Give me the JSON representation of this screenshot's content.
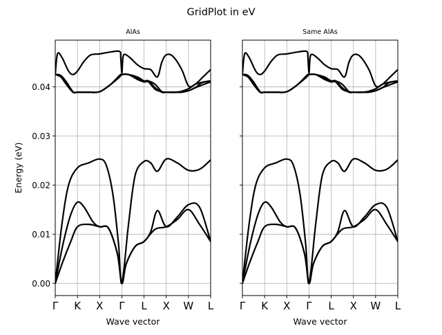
{
  "figure": {
    "suptitle": "GridPlot in eV"
  },
  "chart_data": [
    {
      "type": "line",
      "title": "AlAs",
      "xlabel": "Wave vector",
      "ylabel": "Energy (eV)",
      "ylim": [
        -0.0025,
        0.0495
      ],
      "yticks": [
        0.0,
        0.01,
        0.02,
        0.03,
        0.04
      ],
      "ytick_labels": [
        "0.00",
        "0.01",
        "0.02",
        "0.03",
        "0.04"
      ],
      "kpoints": [
        "Γ",
        "K",
        "X",
        "Γ",
        "L",
        "X",
        "W",
        "L"
      ],
      "kpoint_positions": [
        0,
        1,
        2,
        3,
        4,
        5,
        6,
        7
      ],
      "grid": true,
      "color": "#000000",
      "series": [
        {
          "x": [
            0,
            0.35,
            0.7,
            1,
            1.5,
            2,
            2.4,
            2.8,
            3,
            3.2,
            3.6,
            4,
            4.5,
            5,
            5.5,
            6,
            6.5,
            7
          ],
          "values": [
            0.0,
            0.0045,
            0.0085,
            0.0115,
            0.012,
            0.0115,
            0.0112,
            0.006,
            0.0,
            0.004,
            0.0075,
            0.0085,
            0.011,
            0.0115,
            0.013,
            0.015,
            0.012,
            0.0085
          ]
        },
        {
          "x": [
            0,
            0.35,
            0.7,
            1,
            1.3,
            1.7,
            2,
            2.4,
            2.8,
            3,
            3.2,
            3.6,
            4,
            4.3,
            4.6,
            5,
            5.5,
            6,
            6.5,
            7
          ],
          "values": [
            0.0,
            0.008,
            0.014,
            0.0165,
            0.0155,
            0.0125,
            0.0115,
            0.0112,
            0.006,
            0.0,
            0.004,
            0.0075,
            0.0085,
            0.0105,
            0.0148,
            0.0115,
            0.0135,
            0.016,
            0.0155,
            0.0085
          ]
        },
        {
          "x": [
            0,
            0.3,
            0.6,
            1,
            1.5,
            2,
            2.3,
            2.6,
            2.85,
            3,
            3.3,
            3.6,
            4,
            4.3,
            4.6,
            5,
            5.5,
            6,
            6.5,
            7
          ],
          "values": [
            0.0,
            0.012,
            0.02,
            0.0235,
            0.0245,
            0.0253,
            0.024,
            0.018,
            0.008,
            0.0,
            0.012,
            0.022,
            0.0248,
            0.0245,
            0.0228,
            0.0253,
            0.0245,
            0.023,
            0.0232,
            0.0251
          ]
        },
        {
          "x": [
            0,
            0.25,
            0.5,
            0.8,
            1,
            1.5,
            2,
            2.5,
            2.9,
            2.95,
            3,
            3.3,
            3.7,
            4,
            4.2,
            4.5,
            4.8,
            5,
            5.3,
            5.7,
            6,
            6.3,
            6.7,
            7
          ],
          "values": [
            0.0425,
            0.0423,
            0.0405,
            0.0389,
            0.0389,
            0.0389,
            0.039,
            0.0405,
            0.0423,
            0.0425,
            0.0425,
            0.0425,
            0.0415,
            0.041,
            0.041,
            0.0395,
            0.039,
            0.0389,
            0.0389,
            0.039,
            0.0392,
            0.0398,
            0.0405,
            0.041
          ]
        },
        {
          "x": [
            0,
            0.25,
            0.5,
            0.8,
            1,
            1.5,
            2,
            2.5,
            2.9,
            3,
            3.3,
            3.7,
            4,
            4.2,
            4.5,
            4.8,
            5,
            5.3,
            5.7,
            6,
            6.3,
            6.6,
            7
          ],
          "values": [
            0.0425,
            0.0423,
            0.041,
            0.039,
            0.0389,
            0.0389,
            0.039,
            0.0405,
            0.0423,
            0.0425,
            0.0425,
            0.0417,
            0.0412,
            0.0412,
            0.0405,
            0.039,
            0.0389,
            0.0389,
            0.0389,
            0.0392,
            0.0398,
            0.0408,
            0.0412
          ]
        },
        {
          "x": [
            0,
            0.1,
            0.3,
            0.6,
            0.8,
            1,
            1.3,
            1.6,
            2,
            2.5,
            2.9,
            2.95,
            3,
            3.05,
            3.15,
            3.4,
            3.7,
            4,
            4.3,
            4.6,
            4.8,
            5,
            5.3,
            5.7,
            6,
            6.3,
            6.7,
            7
          ],
          "values": [
            0.0425,
            0.0467,
            0.046,
            0.0432,
            0.0425,
            0.0432,
            0.0452,
            0.0465,
            0.0467,
            0.0471,
            0.0472,
            0.046,
            0.0428,
            0.046,
            0.0466,
            0.0458,
            0.0445,
            0.0437,
            0.0435,
            0.042,
            0.045,
            0.0465,
            0.0462,
            0.0435,
            0.0402,
            0.0405,
            0.0422,
            0.0435
          ]
        },
        {
          "x": [
            0,
            0.25,
            0.5,
            0.8,
            1,
            1.5,
            2,
            2.5,
            2.9,
            3,
            3.3,
            3.7,
            4,
            4.2,
            4.5,
            4.8,
            5,
            5.5,
            6,
            6.3,
            6.7,
            7
          ],
          "values": [
            0.0425,
            0.042,
            0.0405,
            0.0389,
            0.0389,
            0.0389,
            0.039,
            0.0405,
            0.042,
            0.0425,
            0.0425,
            0.042,
            0.0412,
            0.0412,
            0.0398,
            0.0389,
            0.0389,
            0.0389,
            0.0396,
            0.0405,
            0.041,
            0.0412
          ]
        }
      ]
    },
    {
      "type": "line",
      "title": "Same AlAs",
      "xlabel": "Wave vector",
      "ylabel": "",
      "ylim": [
        -0.0025,
        0.0495
      ],
      "yticks": [
        0.0,
        0.01,
        0.02,
        0.03,
        0.04
      ],
      "ytick_labels": [],
      "kpoints": [
        "Γ",
        "K",
        "X",
        "Γ",
        "L",
        "X",
        "W",
        "L"
      ],
      "kpoint_positions": [
        0,
        1,
        2,
        3,
        4,
        5,
        6,
        7
      ],
      "grid": true,
      "color": "#000000",
      "series": [
        {
          "x": [
            0,
            0.35,
            0.7,
            1,
            1.5,
            2,
            2.4,
            2.8,
            3,
            3.2,
            3.6,
            4,
            4.5,
            5,
            5.5,
            6,
            6.5,
            7
          ],
          "values": [
            0.0,
            0.0045,
            0.0085,
            0.0115,
            0.012,
            0.0115,
            0.0112,
            0.006,
            0.0,
            0.004,
            0.0075,
            0.0085,
            0.011,
            0.0115,
            0.013,
            0.015,
            0.012,
            0.0085
          ]
        },
        {
          "x": [
            0,
            0.35,
            0.7,
            1,
            1.3,
            1.7,
            2,
            2.4,
            2.8,
            3,
            3.2,
            3.6,
            4,
            4.3,
            4.6,
            5,
            5.5,
            6,
            6.5,
            7
          ],
          "values": [
            0.0,
            0.008,
            0.014,
            0.0165,
            0.0155,
            0.0125,
            0.0115,
            0.0112,
            0.006,
            0.0,
            0.004,
            0.0075,
            0.0085,
            0.0105,
            0.0148,
            0.0115,
            0.0135,
            0.016,
            0.0155,
            0.0085
          ]
        },
        {
          "x": [
            0,
            0.3,
            0.6,
            1,
            1.5,
            2,
            2.3,
            2.6,
            2.85,
            3,
            3.3,
            3.6,
            4,
            4.3,
            4.6,
            5,
            5.5,
            6,
            6.5,
            7
          ],
          "values": [
            0.0,
            0.012,
            0.02,
            0.0235,
            0.0245,
            0.0253,
            0.024,
            0.018,
            0.008,
            0.0,
            0.012,
            0.022,
            0.0248,
            0.0245,
            0.0228,
            0.0253,
            0.0245,
            0.023,
            0.0232,
            0.0251
          ]
        },
        {
          "x": [
            0,
            0.25,
            0.5,
            0.8,
            1,
            1.5,
            2,
            2.5,
            2.9,
            2.95,
            3,
            3.3,
            3.7,
            4,
            4.2,
            4.5,
            4.8,
            5,
            5.3,
            5.7,
            6,
            6.3,
            6.7,
            7
          ],
          "values": [
            0.0425,
            0.0423,
            0.0405,
            0.0389,
            0.0389,
            0.0389,
            0.039,
            0.0405,
            0.0423,
            0.0425,
            0.0425,
            0.0425,
            0.0415,
            0.041,
            0.041,
            0.0395,
            0.039,
            0.0389,
            0.0389,
            0.039,
            0.0392,
            0.0398,
            0.0405,
            0.041
          ]
        },
        {
          "x": [
            0,
            0.25,
            0.5,
            0.8,
            1,
            1.5,
            2,
            2.5,
            2.9,
            3,
            3.3,
            3.7,
            4,
            4.2,
            4.5,
            4.8,
            5,
            5.3,
            5.7,
            6,
            6.3,
            6.6,
            7
          ],
          "values": [
            0.0425,
            0.0423,
            0.041,
            0.039,
            0.0389,
            0.0389,
            0.039,
            0.0405,
            0.0423,
            0.0425,
            0.0425,
            0.0417,
            0.0412,
            0.0412,
            0.0405,
            0.039,
            0.0389,
            0.0389,
            0.0389,
            0.0392,
            0.0398,
            0.0408,
            0.0412
          ]
        },
        {
          "x": [
            0,
            0.1,
            0.3,
            0.6,
            0.8,
            1,
            1.3,
            1.6,
            2,
            2.5,
            2.9,
            2.95,
            3,
            3.05,
            3.15,
            3.4,
            3.7,
            4,
            4.3,
            4.6,
            4.8,
            5,
            5.3,
            5.7,
            6,
            6.3,
            6.7,
            7
          ],
          "values": [
            0.0425,
            0.0467,
            0.046,
            0.0432,
            0.0425,
            0.0432,
            0.0452,
            0.0465,
            0.0467,
            0.0471,
            0.0472,
            0.046,
            0.0428,
            0.046,
            0.0466,
            0.0458,
            0.0445,
            0.0437,
            0.0435,
            0.042,
            0.045,
            0.0465,
            0.0462,
            0.0435,
            0.0402,
            0.0405,
            0.0422,
            0.0435
          ]
        },
        {
          "x": [
            0,
            0.25,
            0.5,
            0.8,
            1,
            1.5,
            2,
            2.5,
            2.9,
            3,
            3.3,
            3.7,
            4,
            4.2,
            4.5,
            4.8,
            5,
            5.5,
            6,
            6.3,
            6.7,
            7
          ],
          "values": [
            0.0425,
            0.042,
            0.0405,
            0.0389,
            0.0389,
            0.0389,
            0.039,
            0.0405,
            0.042,
            0.0425,
            0.0425,
            0.042,
            0.0412,
            0.0412,
            0.0398,
            0.0389,
            0.0389,
            0.0389,
            0.0396,
            0.0405,
            0.041,
            0.0412
          ]
        }
      ]
    }
  ]
}
